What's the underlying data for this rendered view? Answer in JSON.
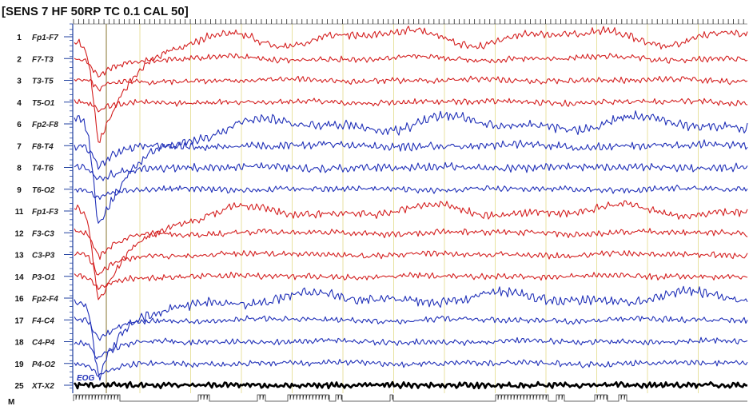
{
  "header": {
    "text": "[SENS 7  HF 50RP  TC 0.1  CAL 50]"
  },
  "colors": {
    "red": "#d42020",
    "blue": "#2030b8",
    "black": "#000000",
    "axis": "#2040a0",
    "grid": "#e8e2a0",
    "cursor": "#9a8a50"
  },
  "chart_data": {
    "type": "line",
    "channels": [
      {
        "num": "1",
        "label": "Fp1-F7",
        "color": "red",
        "artifact": 120,
        "drift": 30,
        "amp": 4
      },
      {
        "num": "2",
        "label": "F7-T3",
        "color": "red",
        "artifact": 20,
        "drift": 8,
        "amp": 3
      },
      {
        "num": "3",
        "label": "T3-T5",
        "color": "red",
        "artifact": 12,
        "drift": 5,
        "amp": 3
      },
      {
        "num": "4",
        "label": "T5-O1",
        "color": "red",
        "artifact": 10,
        "drift": 4,
        "amp": 3
      },
      {
        "num": "6",
        "label": "Fp2-F8",
        "color": "blue",
        "artifact": 130,
        "drift": 28,
        "amp": 5
      },
      {
        "num": "7",
        "label": "F8-T4",
        "color": "blue",
        "artifact": 25,
        "drift": 6,
        "amp": 4
      },
      {
        "num": "8",
        "label": "T4-T6",
        "color": "blue",
        "artifact": 15,
        "drift": 4,
        "amp": 4
      },
      {
        "num": "9",
        "label": "T6-O2",
        "color": "blue",
        "artifact": 12,
        "drift": 4,
        "amp": 3
      },
      {
        "num": "11",
        "label": "Fp1-F3",
        "color": "red",
        "artifact": 110,
        "drift": 22,
        "amp": 4
      },
      {
        "num": "12",
        "label": "F3-C3",
        "color": "red",
        "artifact": 30,
        "drift": 6,
        "amp": 3
      },
      {
        "num": "13",
        "label": "C3-P3",
        "color": "red",
        "artifact": 25,
        "drift": 5,
        "amp": 3
      },
      {
        "num": "14",
        "label": "P3-O1",
        "color": "red",
        "artifact": 15,
        "drift": 4,
        "amp": 3
      },
      {
        "num": "16",
        "label": "Fp2-F4",
        "color": "blue",
        "artifact": 100,
        "drift": 22,
        "amp": 5
      },
      {
        "num": "17",
        "label": "F4-C4",
        "color": "blue",
        "artifact": 25,
        "drift": 5,
        "amp": 3
      },
      {
        "num": "18",
        "label": "C4-P4",
        "color": "blue",
        "artifact": 20,
        "drift": 4,
        "amp": 3
      },
      {
        "num": "19",
        "label": "P4-O2",
        "color": "blue",
        "artifact": 15,
        "drift": 4,
        "amp": 3
      },
      {
        "num": "25",
        "label": "XT-X2",
        "color": "black",
        "artifact": 0,
        "drift": 0,
        "amp": 3
      }
    ],
    "eog_label": "EOG",
    "marker_label": "M",
    "grid": true
  }
}
